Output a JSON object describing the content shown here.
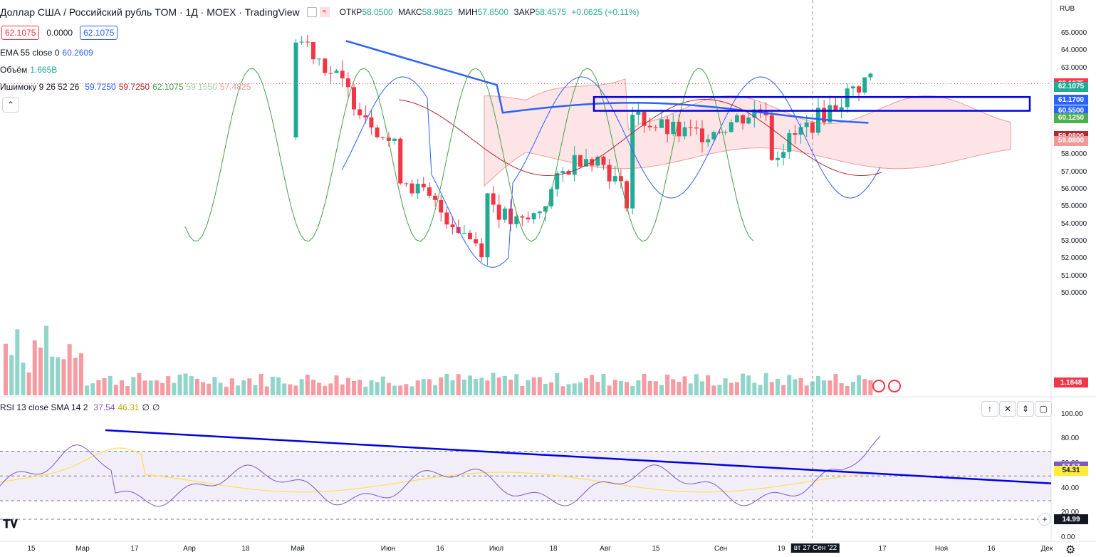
{
  "header": {
    "symbol_title": "Доллар США / Российский рубль TOM · 1Д · MOEX · TradingView",
    "ohlc": [
      {
        "label": "ОТКР",
        "value": "58.0500"
      },
      {
        "label": "МАКС",
        "value": "58.9825"
      },
      {
        "label": "МИН",
        "value": "57.8500"
      },
      {
        "label": "ЗАКР",
        "value": "58.4575"
      },
      {
        "label": "",
        "value": "+0.0625 (+0.11%)"
      }
    ],
    "price_box_left": "62.1075",
    "spread": "0.0000",
    "price_box_right": "62.1075"
  },
  "indicators": {
    "ema": {
      "name": "EMA 55 close 0",
      "value": "60.2609"
    },
    "volume": {
      "name": "Объём",
      "value": "1.665B"
    },
    "ichimoku": {
      "name": "Ишимоку 9 26 52 26",
      "values": [
        "59.7250",
        "59.7250",
        "62.1075",
        "59.1550",
        "57.4825"
      ]
    },
    "rsi": {
      "name": "RSI 13 close SMA 14 2",
      "values": [
        "37.54",
        "46.31",
        "∅",
        "∅"
      ]
    }
  },
  "axis": {
    "currency": "RUB",
    "price_ticks": [
      "65.0000",
      "64.0000",
      "63.0000",
      "62.0000",
      "61.0000",
      "60.0000",
      "59.0000",
      "58.0000",
      "57.0000",
      "56.0000",
      "55.0000",
      "54.0000",
      "53.0000",
      "52.0000",
      "51.0000",
      "50.0000"
    ],
    "rsi_ticks": [
      "100.00",
      "80.00",
      "60.00",
      "40.00",
      "20.00",
      "0.00"
    ],
    "price_tags": [
      {
        "value": "62.1075",
        "price": 62.1075,
        "color": "#f23645"
      },
      {
        "value": "62.1075",
        "price": 61.92,
        "color": "#22ab94"
      },
      {
        "value": "61.1700",
        "price": 61.17,
        "color": "#2962ff"
      },
      {
        "value": "60.5500",
        "price": 60.55,
        "color": "#2962ff"
      },
      {
        "value": "60.1250",
        "price": 60.125,
        "color": "#4caf50"
      },
      {
        "value": "59.0800",
        "price": 59.08,
        "color": "#b22833"
      },
      {
        "value": "59.0800",
        "price": 58.8,
        "color": "#ef9a9a"
      }
    ],
    "volume_tag": "1.1848",
    "rsi_tags": [
      {
        "value": "57.57",
        "rsi": 57.57,
        "color": "#7e57c2"
      },
      {
        "value": "54.31",
        "rsi": 54.31,
        "color": "#ffeb3b"
      }
    ],
    "rsi_lower_tag": "14.99",
    "date_ticks": [
      "15",
      "Мар",
      "17",
      "Апр",
      "18",
      "Май",
      "Июн",
      "16",
      "Июл",
      "18",
      "Авг",
      "15",
      "Сен",
      "19",
      "вт 27 Сен '22",
      "17",
      "Ноя",
      "16",
      "Дек"
    ]
  },
  "chart_data": {
    "type": "candlestick",
    "symbol": "USDRUB_TOM",
    "interval": "1D",
    "ylim": [
      50,
      65.5
    ],
    "last_bar": {
      "open": 58.05,
      "high": 58.9825,
      "low": 57.85,
      "close": 58.4575
    },
    "last_price": 62.1075,
    "ema55_last": 60.2609,
    "ichimoku_last": {
      "conversion": 59.725,
      "base": 59.725,
      "lagging": 62.1075,
      "lead_a": 59.155,
      "lead_b": 57.4825
    },
    "rsi_last": 37.54,
    "rsi_sma_last": 46.31,
    "rsi_ylim": [
      0,
      100
    ],
    "drawings": {
      "resistance_box": {
        "low": 60.95,
        "high": 61.17
      },
      "rsi_trendline": {
        "from_rsi": 87,
        "to_rsi": 44
      }
    }
  }
}
